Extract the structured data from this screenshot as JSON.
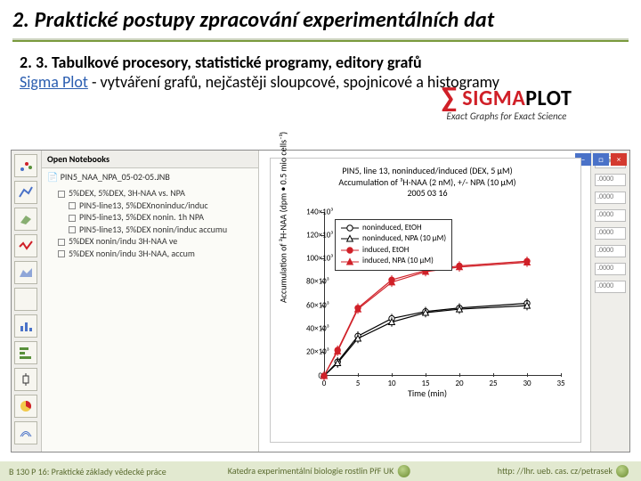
{
  "title": "2. Praktické postupy zpracování experimentálních dat",
  "subtitle": "2. 3. Tabulkové procesory, statistické programy, editory grafů",
  "body_link_text": "Sigma Plot",
  "body_link_color": "#2a5db0",
  "body_rest": " - vytváření grafů, nejčastěji sloupcové, spojnicové a histogramy",
  "logo": {
    "brand_prefix": "SIGMA",
    "brand_suffix": "PLOT",
    "sigma_color": "#d02028",
    "tagline": "Exact Graphs for Exact Science"
  },
  "app": {
    "notebook_label": "Open Notebooks",
    "path": "PIN5_NAA_NPA_05-02-05.JNB",
    "tree": [
      {
        "i": 1,
        "t": "5%DEX, 5%DEX, 3H-NAA vs. NPA"
      },
      {
        "i": 2,
        "t": "PIN5-line13,  5%DEXnoninduc/induc"
      },
      {
        "i": 2,
        "t": "PIN5-line13,  5%DEX nonin. 1h NPA"
      },
      {
        "i": 2,
        "t": "PIN5-line13,  5%DEX nonin/induc accumu"
      },
      {
        "i": 1,
        "t": "5%DEX nonin/indu 3H-NAA ve"
      },
      {
        "i": 1,
        "t": "5%DEX nonin/indu 3H-NAA, accum"
      }
    ],
    "right_cells": [
      ".0000",
      ".0000",
      ".0000",
      ".0000",
      ".0000",
      ".0000",
      ".0000",
      ".0000"
    ]
  },
  "chart": {
    "type": "line-scatter",
    "title_lines": [
      "PIN5, line 13, noninduced/induced (DEX, 5 µM)",
      "Accumulation of ³H-NAA (2 nM), +/- NPA (10 µM)",
      "2005 03 16"
    ],
    "xlabel": "Time (min)",
    "ylabel": "Accumulation of ³H-NAA (dpm • 0.5 mio cells⁻¹)",
    "ylim": [
      0,
      140000
    ],
    "ylabels": [
      "0",
      "20×10³",
      "40×10³",
      "60×10³",
      "80×10³",
      "100×10³",
      "120×10³",
      "140×10³"
    ],
    "xlim": [
      0,
      35
    ],
    "xticks": [
      0,
      5,
      10,
      15,
      20,
      25,
      30,
      35
    ],
    "legend": [
      {
        "label": "noninduced, EtOH",
        "marker": "open-circle",
        "color": "#000000"
      },
      {
        "label": "noninduced, NPA (10 µM)",
        "marker": "open-triangle",
        "color": "#000000"
      },
      {
        "label": "induced, EtOH",
        "marker": "filled-circle",
        "color": "#d02028"
      },
      {
        "label": "induced, NPA (10 µM)",
        "marker": "filled-triangle",
        "color": "#d02028"
      }
    ],
    "series": [
      {
        "name": "noninduced-etoh",
        "color": "#000000",
        "fill": "none",
        "shape": "circle",
        "x": [
          0,
          2,
          5,
          10,
          15,
          20,
          30
        ],
        "y": [
          0,
          12000,
          34000,
          49000,
          55000,
          58000,
          62000
        ]
      },
      {
        "name": "noninduced-npa",
        "color": "#000000",
        "fill": "none",
        "shape": "triangle",
        "x": [
          0,
          2,
          5,
          10,
          15,
          20,
          30
        ],
        "y": [
          0,
          11000,
          32000,
          46000,
          54000,
          57000,
          60000
        ]
      },
      {
        "name": "induced-etoh",
        "color": "#d02028",
        "fill": "#d02028",
        "shape": "circle",
        "x": [
          0,
          2,
          5,
          10,
          15,
          20,
          30
        ],
        "y": [
          0,
          22000,
          58000,
          82000,
          90000,
          94000,
          98000
        ]
      },
      {
        "name": "induced-npa",
        "color": "#d02028",
        "fill": "#d02028",
        "shape": "triangle",
        "x": [
          0,
          2,
          5,
          10,
          15,
          20,
          30
        ],
        "y": [
          0,
          21000,
          57000,
          80000,
          89000,
          93000,
          97000
        ]
      }
    ],
    "errorbar_halfwidth": 4000,
    "background_color": "#ffffff",
    "axis_color": "#333333",
    "label_fontsize": 10,
    "tick_fontsize": 9
  },
  "footer": {
    "left": "B 130 P 16: Praktické základy vědecké práce",
    "center": "Katedra experimentální biologie rostlin PřF UK",
    "right": "http: //lhr. ueb. cas. cz/petrasek"
  }
}
